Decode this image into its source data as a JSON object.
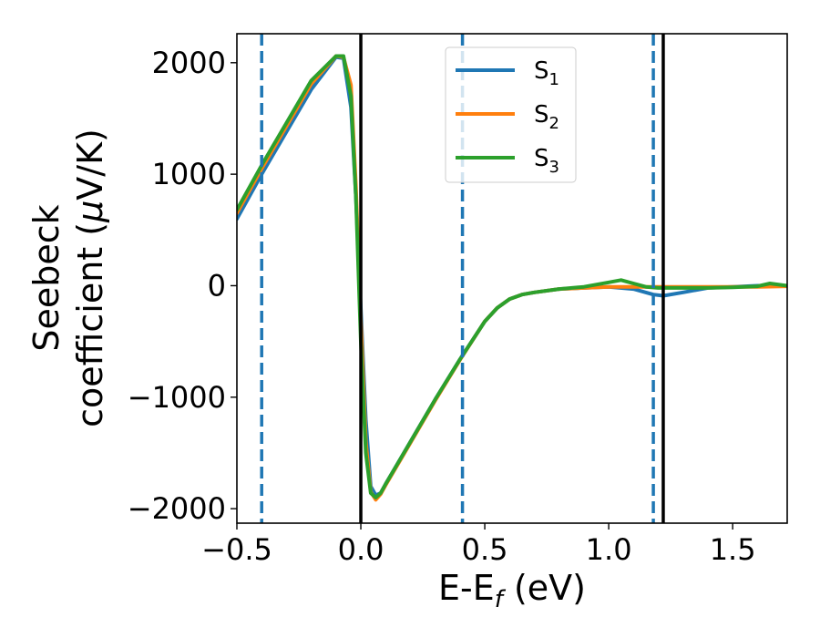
{
  "chart_data": {
    "type": "line",
    "xlabel": "E-E",
    "xlabel_sub": "f",
    "xlabel_suffix": " (eV)",
    "ylabel_line1": "Seebeck",
    "ylabel_line2_prefix": "coefficient  (",
    "ylabel_mu": "μ",
    "ylabel_line2_suffix": "V/K)",
    "xlim": [
      -0.5,
      1.72
    ],
    "ylim": [
      -2130,
      2260
    ],
    "xticks": [
      -0.5,
      0.0,
      0.5,
      1.0,
      1.5
    ],
    "xtick_labels": [
      "−0.5",
      "0.0",
      "0.5",
      "1.0",
      "1.5"
    ],
    "yticks": [
      -2000,
      -1000,
      0,
      1000,
      2000
    ],
    "ytick_labels": [
      "−2000",
      "−1000",
      "0",
      "1000",
      "2000"
    ],
    "grid": false,
    "legend_position": "top-center",
    "vlines": [
      {
        "x": -0.4,
        "style": "dashed",
        "color": "#1f77b4"
      },
      {
        "x": 0.0,
        "style": "solid",
        "color": "#000000"
      },
      {
        "x": 0.41,
        "style": "dashed",
        "color": "#1f77b4"
      },
      {
        "x": 1.18,
        "style": "dashed",
        "color": "#1f77b4"
      },
      {
        "x": 1.22,
        "style": "solid",
        "color": "#000000"
      }
    ],
    "series": [
      {
        "name": "S",
        "sub": "1",
        "color": "#1f77b4",
        "x": [
          -0.5,
          -0.4,
          -0.3,
          -0.2,
          -0.1,
          -0.07,
          -0.04,
          -0.02,
          0.0,
          0.02,
          0.04,
          0.06,
          0.08,
          0.1,
          0.2,
          0.3,
          0.4,
          0.5,
          0.55,
          0.6,
          0.65,
          0.7,
          0.8,
          0.9,
          1.0,
          1.1,
          1.18,
          1.22,
          1.3,
          1.4,
          1.5,
          1.6,
          1.72
        ],
        "y": [
          600,
          1000,
          1380,
          1760,
          2050,
          2040,
          1600,
          800,
          -200,
          -1200,
          -1800,
          -1880,
          -1860,
          -1780,
          -1400,
          -1020,
          -660,
          -320,
          -200,
          -120,
          -80,
          -60,
          -30,
          -20,
          -10,
          -30,
          -80,
          -90,
          -60,
          -20,
          -10,
          0,
          0
        ]
      },
      {
        "name": "S",
        "sub": "2",
        "color": "#ff7f0e",
        "x": [
          -0.5,
          -0.4,
          -0.3,
          -0.2,
          -0.1,
          -0.07,
          -0.04,
          -0.02,
          0.0,
          0.02,
          0.04,
          0.06,
          0.08,
          0.1,
          0.2,
          0.3,
          0.4,
          0.5,
          0.55,
          0.6,
          0.65,
          0.7,
          0.8,
          0.9,
          1.0,
          1.1,
          1.18,
          1.22,
          1.3,
          1.4,
          1.5,
          1.6,
          1.72
        ],
        "y": [
          650,
          1050,
          1430,
          1810,
          2060,
          2050,
          1800,
          900,
          -300,
          -1400,
          -1850,
          -1920,
          -1870,
          -1790,
          -1410,
          -1030,
          -665,
          -320,
          -200,
          -120,
          -80,
          -60,
          -30,
          -20,
          -10,
          -10,
          -10,
          -10,
          -10,
          -10,
          -10,
          -10,
          -5
        ]
      },
      {
        "name": "S",
        "sub": "3",
        "color": "#2ca02c",
        "x": [
          -0.5,
          -0.4,
          -0.3,
          -0.2,
          -0.1,
          -0.07,
          -0.04,
          -0.02,
          0.0,
          0.02,
          0.04,
          0.06,
          0.08,
          0.1,
          0.2,
          0.3,
          0.4,
          0.5,
          0.55,
          0.6,
          0.65,
          0.7,
          0.8,
          0.9,
          1.0,
          1.05,
          1.1,
          1.15,
          1.2,
          1.3,
          1.4,
          1.5,
          1.6,
          1.65,
          1.72
        ],
        "y": [
          680,
          1080,
          1460,
          1840,
          2060,
          2060,
          1700,
          800,
          -500,
          -1500,
          -1860,
          -1900,
          -1860,
          -1780,
          -1400,
          -1020,
          -660,
          -320,
          -200,
          -120,
          -80,
          -60,
          -30,
          -10,
          30,
          50,
          20,
          -10,
          -20,
          -20,
          -20,
          -15,
          -5,
          20,
          0
        ]
      }
    ]
  }
}
